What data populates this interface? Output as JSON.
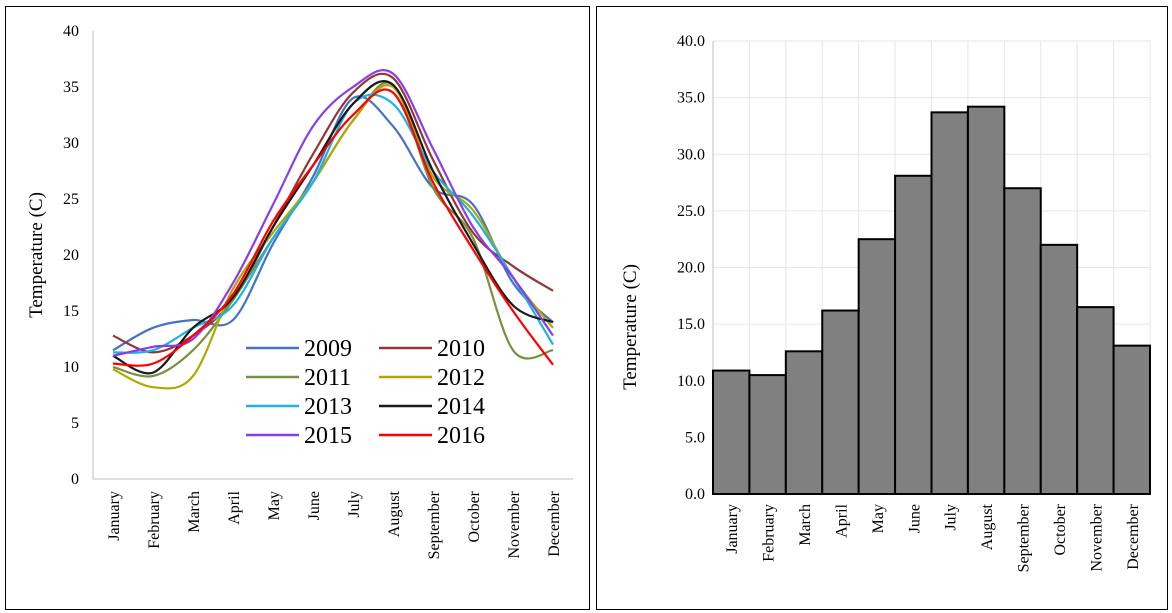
{
  "chart_data": [
    {
      "type": "line",
      "xlabel": "",
      "ylabel": "Temperature (C)",
      "ylim": [
        0,
        40
      ],
      "yticks": [
        "0",
        "5",
        "10",
        "15",
        "20",
        "25",
        "30",
        "35",
        "40"
      ],
      "categories": [
        "January",
        "February",
        "March",
        "April",
        "May",
        "June",
        "July",
        "August",
        "September",
        "October",
        "November",
        "December"
      ],
      "grid": false,
      "legend_position": "lower-center inside plot, two columns",
      "series": [
        {
          "name": "2009",
          "color": "#4472c4",
          "values": [
            11.5,
            13.5,
            14.2,
            14.2,
            21.0,
            27.0,
            34.0,
            31.5,
            26.0,
            24.5,
            17.5,
            14.0
          ]
        },
        {
          "name": "2010",
          "color": "#943634",
          "values": [
            12.8,
            11.3,
            12.8,
            16.0,
            22.5,
            29.0,
            34.5,
            35.8,
            28.5,
            22.0,
            19.0,
            16.8
          ]
        },
        {
          "name": "2011",
          "color": "#76923c",
          "values": [
            10.0,
            9.2,
            11.5,
            16.0,
            21.5,
            26.5,
            32.0,
            35.2,
            26.0,
            21.5,
            11.5,
            11.5
          ]
        },
        {
          "name": "2012",
          "color": "#b4a700",
          "values": [
            9.8,
            8.2,
            9.2,
            17.0,
            22.0,
            26.5,
            32.0,
            35.0,
            27.0,
            24.0,
            18.0,
            13.5
          ]
        },
        {
          "name": "2013",
          "color": "#1ab2e8",
          "values": [
            11.3,
            11.5,
            13.5,
            15.5,
            21.5,
            26.5,
            33.5,
            33.5,
            27.5,
            23.5,
            18.0,
            12.0
          ]
        },
        {
          "name": "2014",
          "color": "#1a1a1a",
          "values": [
            11.0,
            9.5,
            13.5,
            16.2,
            22.5,
            28.0,
            33.5,
            35.2,
            27.5,
            21.0,
            15.5,
            14.0
          ]
        },
        {
          "name": "2015",
          "color": "#8a3ee8",
          "values": [
            11.0,
            11.8,
            12.5,
            17.5,
            24.5,
            31.5,
            35.0,
            36.2,
            29.5,
            22.5,
            18.0,
            12.8
          ]
        },
        {
          "name": "2016",
          "color": "#ff0000",
          "values": [
            10.3,
            10.3,
            12.8,
            16.5,
            23.0,
            28.0,
            32.5,
            34.5,
            26.5,
            20.5,
            15.0,
            10.2
          ]
        }
      ]
    },
    {
      "type": "bar",
      "xlabel": "",
      "ylabel": "Temperature (C)",
      "ylim": [
        0,
        40
      ],
      "yticks": [
        "0.0",
        "5.0",
        "10.0",
        "15.0",
        "20.0",
        "25.0",
        "30.0",
        "35.0",
        "40.0"
      ],
      "categories": [
        "January",
        "February",
        "March",
        "April",
        "May",
        "June",
        "July",
        "August",
        "September",
        "October",
        "November",
        "December"
      ],
      "values": [
        10.9,
        10.5,
        12.6,
        16.2,
        22.5,
        28.1,
        33.7,
        34.2,
        27.0,
        22.0,
        16.5,
        13.1
      ],
      "bar_color": "#808080",
      "grid": true
    }
  ]
}
